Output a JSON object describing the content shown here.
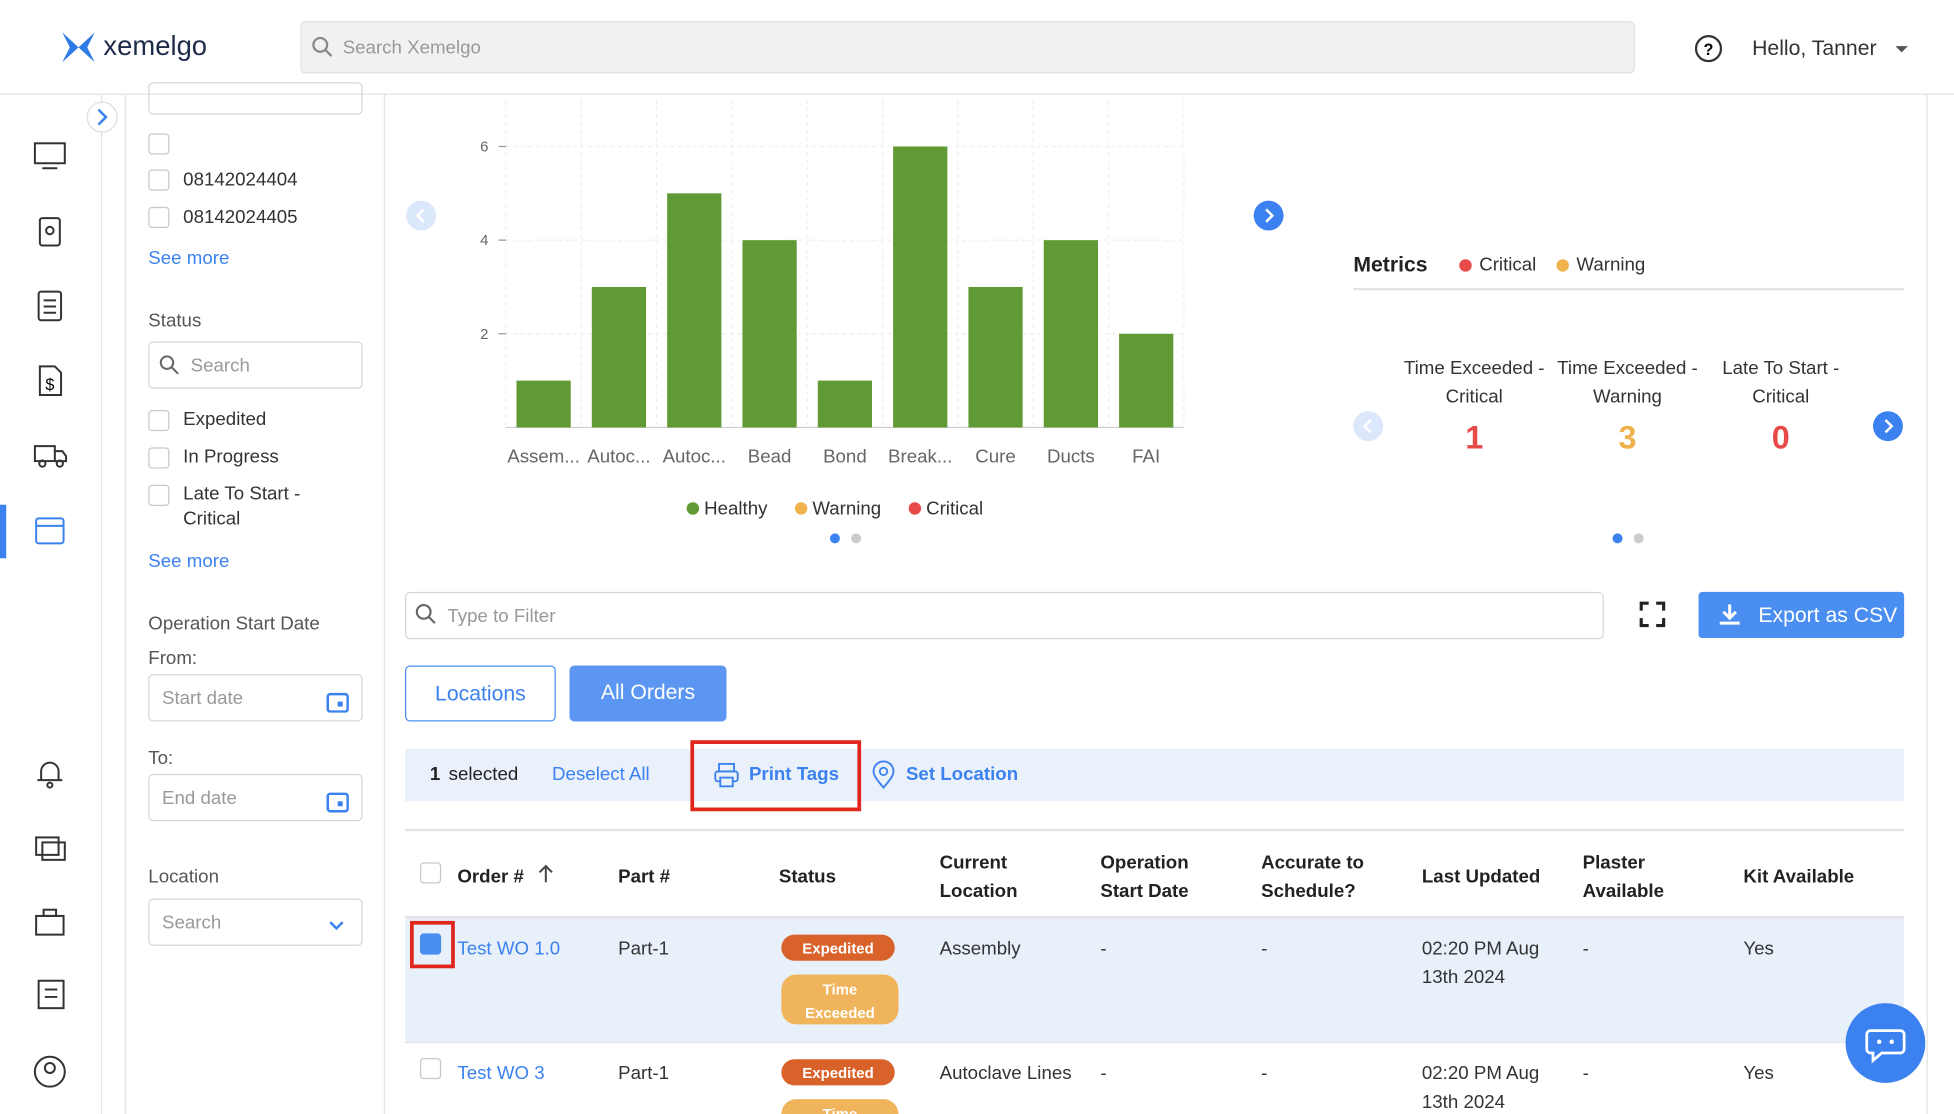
{
  "header": {
    "brand": "xemelgo",
    "search_placeholder": "Search Xemelgo",
    "greeting": "Hello, Tanner"
  },
  "filters": {
    "ids": [
      "08142024404",
      "08142024405"
    ],
    "see_more": "See more",
    "status_label": "Status",
    "status_search": "Search",
    "statuses": [
      "Expedited",
      "In Progress",
      "Late To Start - Critical"
    ],
    "date_label": "Operation Start Date",
    "from": "From:",
    "start_placeholder": "Start date",
    "to": "To:",
    "end_placeholder": "End date",
    "location_label": "Location",
    "location_search": "Search"
  },
  "chart": {
    "type": "bar",
    "categories": [
      "Assem...",
      "Autoc...",
      "Autoc...",
      "Bead",
      "Bond",
      "Break...",
      "Cure",
      "Ducts",
      "FAI"
    ],
    "values": [
      1,
      3,
      5,
      4,
      1,
      6,
      3,
      4,
      2
    ],
    "color": "#5f9a34",
    "ylim": [
      0,
      7
    ],
    "yticks": [
      2,
      4,
      6
    ],
    "grid": true,
    "legend": [
      {
        "name": "Healthy",
        "color": "#5f9a34"
      },
      {
        "name": "Warning",
        "color": "#f0b24c"
      },
      {
        "name": "Critical",
        "color": "#e84a4a"
      }
    ]
  },
  "metrics": {
    "title": "Metrics",
    "legend": [
      {
        "name": "Critical",
        "color": "#e84a4a"
      },
      {
        "name": "Warning",
        "color": "#f0b24c"
      }
    ],
    "items": [
      {
        "label": "Time Exceeded - Critical",
        "value": 1,
        "color": "#e84a4a"
      },
      {
        "label": "Time Exceeded - Warning",
        "value": 3,
        "color": "#f0b24c"
      },
      {
        "label": "Late To Start - Critical",
        "value": 0,
        "color": "#e84a4a"
      }
    ]
  },
  "toolbar": {
    "filter_placeholder": "Type to Filter",
    "export": "Export as CSV",
    "tabs": [
      "Locations",
      "All Orders"
    ]
  },
  "selection": {
    "count": 1,
    "count_label": "selected",
    "deselect": "Deselect All",
    "print": "Print Tags",
    "set_location": "Set Location"
  },
  "table": {
    "columns": [
      "Order #",
      "Part #",
      "Status",
      "Current Location",
      "Operation Start Date",
      "Accurate to Schedule?",
      "Last Updated",
      "Plaster Available",
      "Kit Available"
    ],
    "rows": [
      [
        "Test WO 1.0",
        "Part-1",
        [
          "Expedited",
          "Time Exceeded"
        ],
        "Assembly",
        "-",
        "-",
        "02:20 PM Aug 13th 2024",
        "-",
        "Yes"
      ],
      [
        "Test WO 3",
        "Part-1",
        [
          "Expedited",
          "Time Exceeded"
        ],
        "Autoclave Lines",
        "-",
        "-",
        "02:20 PM Aug 13th 2024",
        "-",
        "Yes"
      ]
    ]
  }
}
